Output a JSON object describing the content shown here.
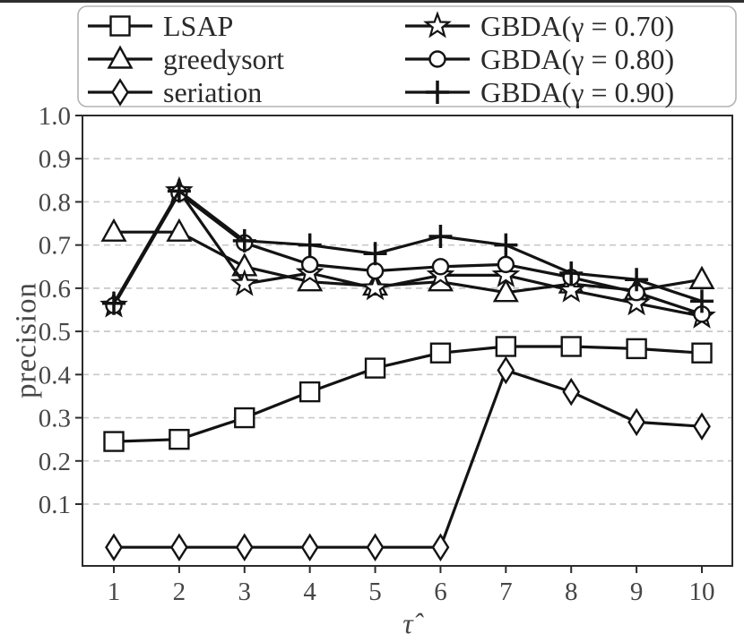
{
  "chart_data": {
    "type": "line",
    "title": "",
    "xlabel": "τ̂",
    "ylabel": "precision",
    "x": [
      1,
      2,
      3,
      4,
      5,
      6,
      7,
      8,
      9,
      10
    ],
    "xticks": [
      "1",
      "2",
      "3",
      "4",
      "5",
      "6",
      "7",
      "8",
      "9",
      "10"
    ],
    "yticks": [
      "0.1",
      "0.2",
      "0.3",
      "0.4",
      "0.5",
      "0.6",
      "0.7",
      "0.8",
      "0.9",
      "1.0"
    ],
    "xlim": [
      0.52,
      10.48
    ],
    "ylim": [
      -0.045,
      1.0
    ],
    "grid": "horizontal-dashed",
    "legend": {
      "position": "top",
      "columns": 2
    },
    "series": [
      {
        "name": "LSAP",
        "marker": "square",
        "values": [
          0.245,
          0.25,
          0.3,
          0.36,
          0.415,
          0.45,
          0.465,
          0.465,
          0.46,
          0.45
        ]
      },
      {
        "name": "greedysort",
        "marker": "triangle",
        "values": [
          0.73,
          0.73,
          0.65,
          0.615,
          0.605,
          0.615,
          0.59,
          0.61,
          0.595,
          0.62
        ]
      },
      {
        "name": "seriation",
        "marker": "diamond",
        "values": [
          0.0,
          0.0,
          0.0,
          0.0,
          0.0,
          0.0,
          0.41,
          0.36,
          0.29,
          0.28
        ]
      },
      {
        "name": "GBDA(γ = 0.70)",
        "marker": "star",
        "values": [
          0.56,
          0.825,
          0.61,
          0.635,
          0.6,
          0.63,
          0.63,
          0.595,
          0.565,
          0.535
        ]
      },
      {
        "name": "GBDA(γ = 0.80)",
        "marker": "circle",
        "values": [
          0.56,
          0.82,
          0.705,
          0.655,
          0.64,
          0.65,
          0.655,
          0.625,
          0.59,
          0.54
        ]
      },
      {
        "name": "GBDA(γ = 0.90)",
        "marker": "plus",
        "values": [
          0.565,
          0.825,
          0.71,
          0.7,
          0.68,
          0.72,
          0.7,
          0.635,
          0.62,
          0.57
        ]
      }
    ],
    "colors": {
      "line": "#131313",
      "marker_fill": "#ffffff",
      "grid": "#c9c9c9",
      "spine": "#2b2b2b",
      "tick_text": "#464646",
      "legend_border": "#b3b3b3",
      "legend_text": "#2a2a2a"
    }
  }
}
